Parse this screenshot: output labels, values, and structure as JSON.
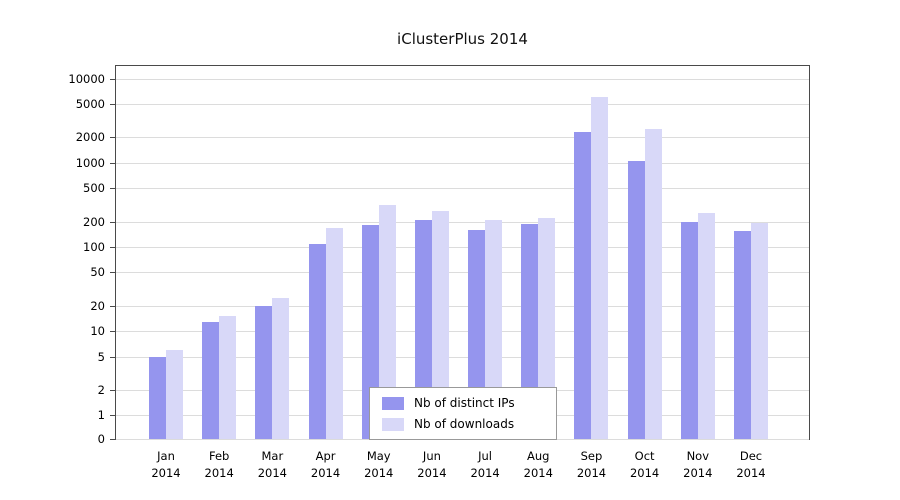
{
  "figure": {
    "title": "iClusterPlus 2014"
  },
  "chart_data": {
    "type": "bar",
    "title": "iClusterPlus 2014",
    "xlabel": "",
    "ylabel": "",
    "yscale": "log",
    "ylim": [
      0,
      10000
    ],
    "yticks": [
      0,
      1,
      2,
      5,
      10,
      20,
      50,
      100,
      200,
      500,
      1000,
      2000,
      5000,
      10000
    ],
    "grid": true,
    "categories": [
      "Jan",
      "Feb",
      "Mar",
      "Apr",
      "May",
      "Jun",
      "Jul",
      "Aug",
      "Sep",
      "Oct",
      "Nov",
      "Dec"
    ],
    "year_label": "2014",
    "legend": {
      "position": "bottom-center-inside",
      "items": [
        "Nb of distinct IPs",
        "Nb of downloads"
      ]
    },
    "series": [
      {
        "name": "Nb of distinct IPs",
        "color": "#9595ee",
        "values": [
          5,
          13,
          20,
          110,
          185,
          210,
          160,
          190,
          2300,
          1050,
          200,
          155
        ]
      },
      {
        "name": "Nb of downloads",
        "color": "#d8d8f8",
        "values": [
          6,
          15,
          25,
          170,
          320,
          270,
          210,
          220,
          6000,
          2500,
          255,
          195
        ]
      }
    ]
  }
}
